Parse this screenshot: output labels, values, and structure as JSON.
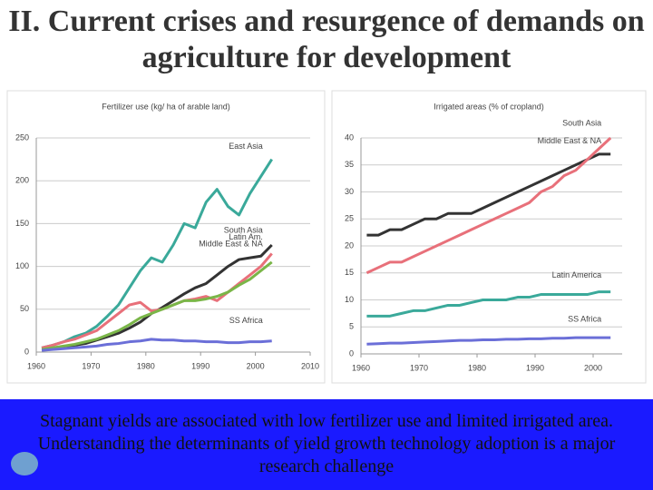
{
  "title": "II. Current crises and resurgence of demands on agriculture for development",
  "footer": "Stagnant yields are associated with low fertilizer use and limited irrigated area. Understanding the determinants of yield growth technology adoption is a major research challenge",
  "chart_data": [
    {
      "type": "line",
      "title": "Fertilizer use (kg/ ha of arable land)",
      "x": [
        1961,
        1963,
        1965,
        1967,
        1969,
        1971,
        1973,
        1975,
        1977,
        1979,
        1981,
        1983,
        1985,
        1987,
        1989,
        1991,
        1993,
        1995,
        1997,
        1999,
        2001,
        2003
      ],
      "xlim": [
        1960,
        2010
      ],
      "xticks": [
        1960,
        1970,
        1980,
        1990,
        2000,
        2010
      ],
      "ylim": [
        0,
        250
      ],
      "yticks": [
        0,
        50,
        100,
        150,
        200,
        250
      ],
      "grid": true,
      "series": [
        {
          "name": "East Asia",
          "color": "#3aa99a",
          "values": [
            5,
            8,
            12,
            18,
            22,
            30,
            42,
            55,
            75,
            95,
            110,
            105,
            125,
            150,
            145,
            175,
            190,
            170,
            160,
            185,
            205,
            225
          ]
        },
        {
          "name": "South Asia",
          "color": "#333333",
          "values": [
            3,
            4,
            6,
            8,
            10,
            14,
            18,
            22,
            28,
            35,
            45,
            52,
            60,
            68,
            75,
            80,
            90,
            100,
            108,
            110,
            112,
            125
          ]
        },
        {
          "name": "Latin Am.",
          "color": "#e8707a",
          "values": [
            5,
            8,
            12,
            15,
            20,
            25,
            35,
            45,
            55,
            58,
            48,
            50,
            55,
            60,
            62,
            65,
            60,
            70,
            80,
            90,
            100,
            115
          ]
        },
        {
          "name": "Middle East & NA",
          "color": "#7ab648",
          "values": [
            3,
            5,
            7,
            9,
            12,
            15,
            20,
            25,
            32,
            40,
            45,
            50,
            55,
            60,
            60,
            62,
            65,
            70,
            78,
            85,
            95,
            105
          ]
        },
        {
          "name": "SS Africa",
          "color": "#6b6fd8",
          "values": [
            2,
            3,
            4,
            5,
            6,
            7,
            9,
            10,
            12,
            13,
            15,
            14,
            14,
            13,
            13,
            12,
            12,
            11,
            11,
            12,
            12,
            13
          ]
        }
      ]
    },
    {
      "type": "line",
      "title": "Irrigated areas (% of cropland)",
      "x": [
        1961,
        1963,
        1965,
        1967,
        1969,
        1971,
        1973,
        1975,
        1977,
        1979,
        1981,
        1983,
        1985,
        1987,
        1989,
        1991,
        1993,
        1995,
        1997,
        1999,
        2001,
        2003
      ],
      "xlim": [
        1960,
        2005
      ],
      "xticks": [
        1960,
        1970,
        1980,
        1990,
        2000
      ],
      "ylim": [
        0,
        40
      ],
      "yticks": [
        0,
        5,
        10,
        15,
        20,
        25,
        30,
        35,
        40
      ],
      "grid": true,
      "series": [
        {
          "name": "Middle East & NA",
          "color": "#333333",
          "values": [
            22,
            22,
            23,
            23,
            24,
            25,
            25,
            26,
            26,
            26,
            27,
            28,
            29,
            30,
            31,
            32,
            33,
            34,
            35,
            36,
            37,
            37
          ]
        },
        {
          "name": "South Asia",
          "color": "#e8707a",
          "values": [
            15,
            16,
            17,
            17,
            18,
            19,
            20,
            21,
            22,
            23,
            24,
            25,
            26,
            27,
            28,
            30,
            31,
            33,
            34,
            36,
            38,
            40
          ]
        },
        {
          "name": "Latin America",
          "color": "#3aa99a",
          "values": [
            7,
            7,
            7,
            7.5,
            8,
            8,
            8.5,
            9,
            9,
            9.5,
            10,
            10,
            10,
            10.5,
            10.5,
            11,
            11,
            11,
            11,
            11,
            11.5,
            11.5
          ]
        },
        {
          "name": "SS Africa",
          "color": "#6b6fd8",
          "values": [
            1.8,
            1.9,
            2,
            2,
            2.1,
            2.2,
            2.3,
            2.4,
            2.5,
            2.5,
            2.6,
            2.6,
            2.7,
            2.7,
            2.8,
            2.8,
            2.9,
            2.9,
            3,
            3,
            3,
            3
          ]
        }
      ]
    }
  ]
}
